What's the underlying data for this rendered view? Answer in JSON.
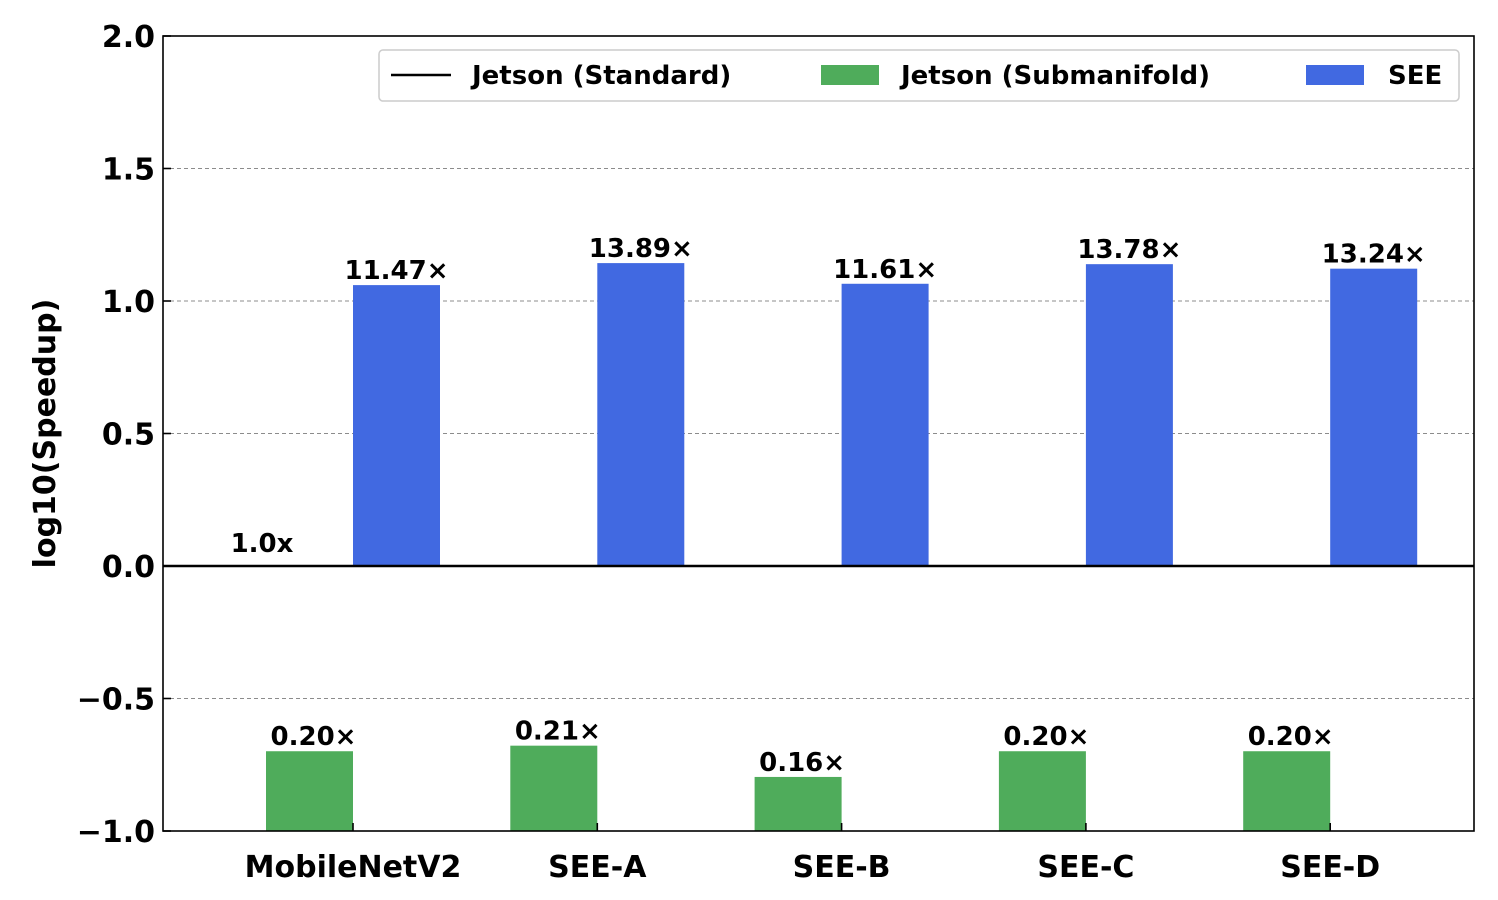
{
  "chart_data": {
    "type": "bar",
    "ylabel": "log10(Speedup)",
    "xlabel": "",
    "ylim": [
      -1.0,
      2.0
    ],
    "yticks": [
      -1.0,
      -0.5,
      0.0,
      0.5,
      1.0,
      1.5,
      2.0
    ],
    "ytick_labels": [
      "−1.0",
      "−0.5",
      "0.0",
      "0.5",
      "1.0",
      "1.5",
      "2.0"
    ],
    "grid": "horizontal dashed",
    "legend_position": "top-right",
    "categories": [
      "MobileNetV2",
      "SEE-A",
      "SEE-B",
      "SEE-C",
      "SEE-D"
    ],
    "baseline": {
      "name": "Jetson (Standard)",
      "value": 0.0,
      "label": "1.0x",
      "color": "#000000"
    },
    "series": [
      {
        "name": "Jetson (Submanifold)",
        "color": "#4fac5b",
        "values": [
          -0.699,
          -0.678,
          -0.796,
          -0.699,
          -0.699
        ],
        "labels": [
          "0.20×",
          "0.21×",
          "0.16×",
          "0.20×",
          "0.20×"
        ]
      },
      {
        "name": "SEE",
        "color": "#4169e1",
        "values": [
          1.06,
          1.143,
          1.065,
          1.139,
          1.122
        ],
        "labels": [
          "11.47×",
          "13.89×",
          "11.61×",
          "13.78×",
          "13.24×"
        ]
      }
    ]
  }
}
